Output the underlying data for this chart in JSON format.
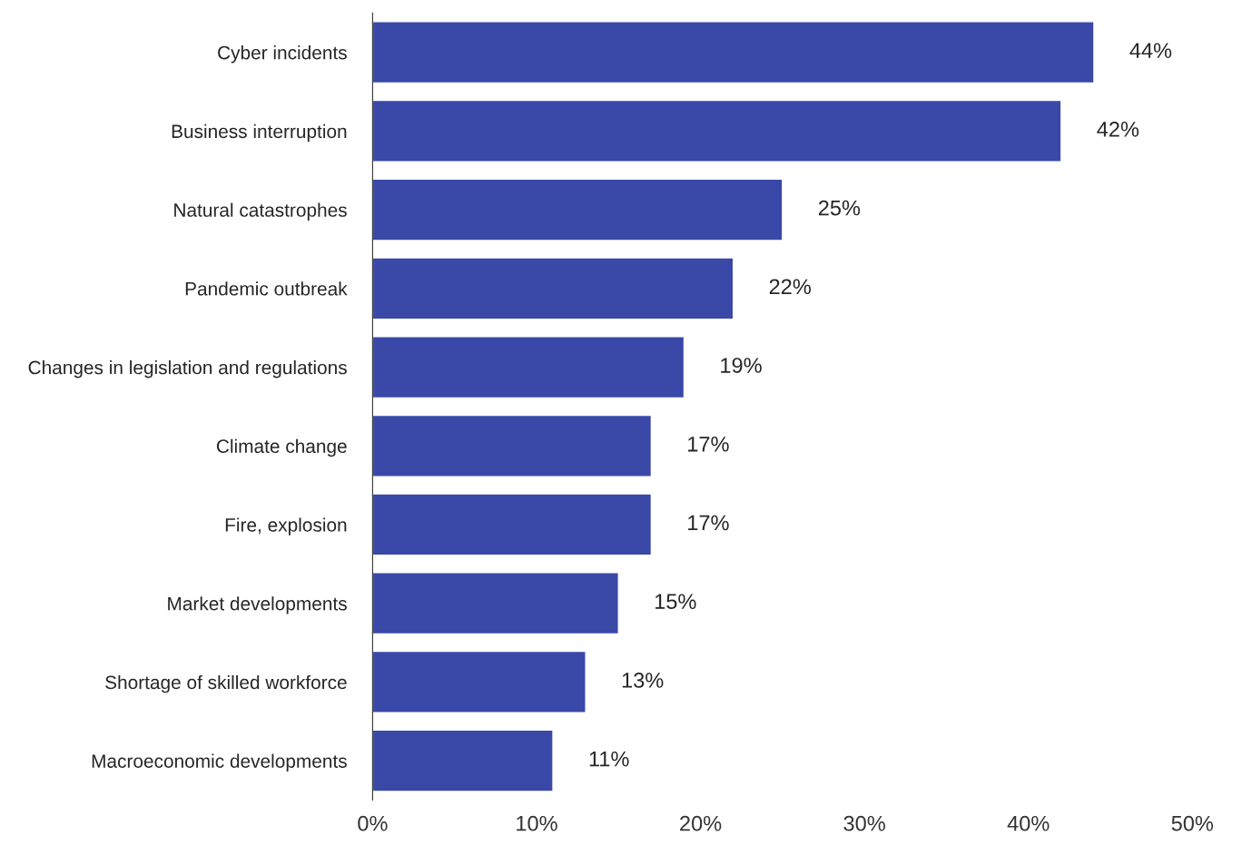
{
  "chart_data": {
    "type": "bar",
    "orientation": "horizontal",
    "categories": [
      "Cyber incidents",
      "Business interruption",
      "Natural catastrophes",
      "Pandemic outbreak",
      "Changes in legislation and regulations",
      "Climate change",
      "Fire, explosion",
      "Market developments",
      "Shortage of skilled workforce",
      "Macroeconomic developments"
    ],
    "values": [
      44,
      42,
      25,
      22,
      19,
      17,
      17,
      15,
      13,
      11
    ],
    "value_labels": [
      "44%",
      "42%",
      "25%",
      "22%",
      "19%",
      "17%",
      "17%",
      "15%",
      "13%",
      "11%"
    ],
    "color": "#3a48a8",
    "xlim": [
      0,
      50
    ],
    "xticks": [
      {
        "value": 0,
        "label": "0%"
      },
      {
        "value": 10,
        "label": "10%"
      },
      {
        "value": 20,
        "label": "20%"
      },
      {
        "value": 30,
        "label": "30%"
      },
      {
        "value": 40,
        "label": "40%"
      },
      {
        "value": 50,
        "label": "50%"
      }
    ],
    "grid": false,
    "legend": false
  }
}
